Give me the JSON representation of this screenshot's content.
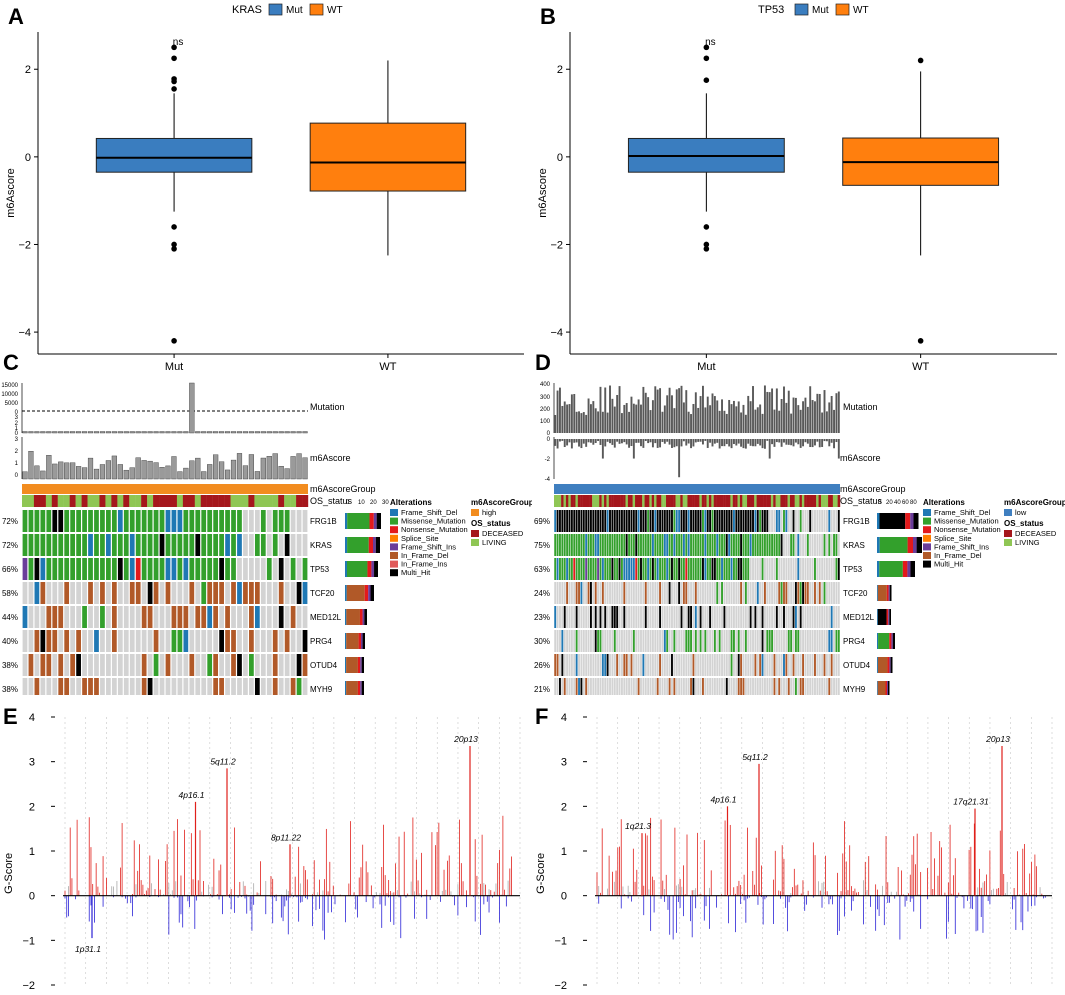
{
  "panels": {
    "A": {
      "letter": "A",
      "legend_title": "KRAS",
      "legend": [
        "Mut",
        "WT"
      ]
    },
    "B": {
      "letter": "B",
      "legend_title": "TP53",
      "legend": [
        "Mut",
        "WT"
      ]
    },
    "C": {
      "letter": "C"
    },
    "D": {
      "letter": "D"
    },
    "E": {
      "letter": "E"
    },
    "F": {
      "letter": "F"
    }
  },
  "colors": {
    "mut": "#3a7dbf",
    "wt": "#ff7f0e",
    "frame_shift_del": "#1f78b4",
    "missense": "#33a02c",
    "nonsense": "#e31a1c",
    "splice": "#ff7f00",
    "frame_shift_ins": "#6a3d9a",
    "in_frame_del": "#b15928",
    "in_frame_ins": "#e05a5a",
    "multi_hit": "#000000",
    "empty": "#d3d3d3",
    "high": "#f28c1f",
    "low": "#3f7fc0",
    "deceased": "#a5171c",
    "living": "#8fc654",
    "amp": "#e0201b",
    "del": "#2a22d6",
    "bar_gray": "#595959"
  },
  "chart_data": [
    {
      "panel": "A",
      "type": "boxplot",
      "title": "",
      "legend_title": "KRAS",
      "categories": [
        "Mut",
        "WT"
      ],
      "ylabel": "m6Ascore",
      "xlabel": "",
      "ylim": [
        -4.5,
        2.85
      ],
      "yticks": [
        -4,
        -2,
        0,
        2
      ],
      "annotation": "ns",
      "boxes": [
        {
          "name": "Mut",
          "q1": -0.35,
          "median": -0.02,
          "q3": 0.42,
          "whisker_low": -1.25,
          "whisker_high": 1.45,
          "outliers": [
            2.5,
            2.25,
            1.78,
            1.72,
            1.55,
            -1.6,
            -2.0,
            -2.1,
            -4.2
          ]
        },
        {
          "name": "WT",
          "q1": -0.78,
          "median": -0.13,
          "q3": 0.77,
          "whisker_low": -2.25,
          "whisker_high": 2.2,
          "outliers": []
        }
      ]
    },
    {
      "panel": "B",
      "type": "boxplot",
      "title": "",
      "legend_title": "TP53",
      "categories": [
        "Mut",
        "WT"
      ],
      "ylabel": "m6Ascore",
      "xlabel": "",
      "ylim": [
        -4.5,
        2.85
      ],
      "yticks": [
        -4,
        -2,
        0,
        2
      ],
      "annotation": "ns",
      "boxes": [
        {
          "name": "Mut",
          "q1": -0.35,
          "median": 0.02,
          "q3": 0.42,
          "whisker_low": -1.25,
          "whisker_high": 1.45,
          "outliers": [
            2.5,
            2.25,
            1.75,
            -1.6,
            -2.0,
            -2.1
          ]
        },
        {
          "name": "WT",
          "q1": -0.65,
          "median": -0.12,
          "q3": 0.43,
          "whisker_low": -2.25,
          "whisker_high": 1.95,
          "outliers": [
            2.2,
            -4.2
          ]
        }
      ]
    },
    {
      "panel": "C",
      "type": "oncoplot",
      "mutation_label": "Mutation",
      "score_label": "m6Ascore",
      "group_label": "m6AscoreGroup",
      "status_label": "OS_status",
      "mutation_ticks": [
        "15000",
        "10000",
        "5000",
        "0",
        "3",
        "2",
        "1",
        "0"
      ],
      "score_ticks": [
        "3",
        "2",
        "1",
        "0"
      ],
      "rowbar_ticks": [
        "0",
        "10",
        "20",
        "30"
      ],
      "genes": [
        "FRG1B",
        "KRAS",
        "TP53",
        "TCF20",
        "MED12L",
        "PRG4",
        "OTUD4",
        "MYH9"
      ],
      "percents": [
        "72%",
        "72%",
        "66%",
        "58%",
        "44%",
        "40%",
        "38%",
        "38%"
      ],
      "legend_alterations_title": "Alterations",
      "alterations": [
        "Frame_Shift_Del",
        "Missense_Mutation",
        "Nonsense_Mutation",
        "Splice_Site",
        "Frame_Shift_Ins",
        "In_Frame_Del",
        "In_Frame_Ins",
        "Multi_Hit"
      ],
      "group_title": "m6AscoreGroup",
      "group_values": [
        "high"
      ],
      "status_title": "OS_status",
      "status_values": [
        "DECEASED",
        "LIVING"
      ]
    },
    {
      "panel": "D",
      "type": "oncoplot",
      "mutation_label": "Mutation",
      "score_label": "m6Ascore",
      "group_label": "m6AscoreGroup",
      "status_label": "OS_status",
      "mutation_ticks": [
        "400",
        "300",
        "200",
        "100",
        "0"
      ],
      "score_ticks": [
        "0",
        "-2",
        "-4"
      ],
      "rowbar_ticks": [
        "0",
        "20",
        "40",
        "60",
        "80"
      ],
      "genes": [
        "FRG1B",
        "KRAS",
        "TP53",
        "TCF20",
        "MED12L",
        "PRG4",
        "OTUD4",
        "MYH9"
      ],
      "percents": [
        "69%",
        "75%",
        "63%",
        "24%",
        "23%",
        "30%",
        "26%",
        "21%"
      ],
      "legend_alterations_title": "Alterations",
      "alterations": [
        "Frame_Shift_Del",
        "Missense_Mutation",
        "Nonsense_Mutation",
        "Splice_Site",
        "Frame_Shift_Ins",
        "In_Frame_Del",
        "Multi_Hit"
      ],
      "group_title": "m6AscoreGroup",
      "group_values": [
        "low"
      ],
      "status_title": "OS_status",
      "status_values": [
        "DECEASED",
        "LIVING"
      ]
    },
    {
      "panel": "E",
      "type": "bar",
      "ylabel": "G-Score",
      "ylim": [
        -2,
        4
      ],
      "yticks": [
        -2,
        -1,
        0,
        1,
        2,
        3,
        4
      ],
      "peaks": [
        {
          "label": "20p13",
          "value": 3.35,
          "pos": 0.9
        },
        {
          "label": "5q11.2",
          "value": 2.85,
          "pos": 0.36
        },
        {
          "label": "4p16.1",
          "value": 2.1,
          "pos": 0.29
        },
        {
          "label": "8p11.22",
          "value": 1.15,
          "pos": 0.5
        },
        {
          "label": "1p31.1",
          "value": -0.95,
          "pos": 0.06
        }
      ]
    },
    {
      "panel": "F",
      "type": "bar",
      "ylabel": "G-Score",
      "ylim": [
        -2,
        4
      ],
      "yticks": [
        -2,
        -1,
        0,
        1,
        2,
        3,
        4
      ],
      "peaks": [
        {
          "label": "20p13",
          "value": 3.35,
          "pos": 0.9
        },
        {
          "label": "5q11.2",
          "value": 2.95,
          "pos": 0.36
        },
        {
          "label": "4p16.1",
          "value": 2.0,
          "pos": 0.29
        },
        {
          "label": "17q21.31",
          "value": 1.95,
          "pos": 0.84
        },
        {
          "label": "1q21.3",
          "value": 1.4,
          "pos": 0.1
        }
      ]
    }
  ]
}
